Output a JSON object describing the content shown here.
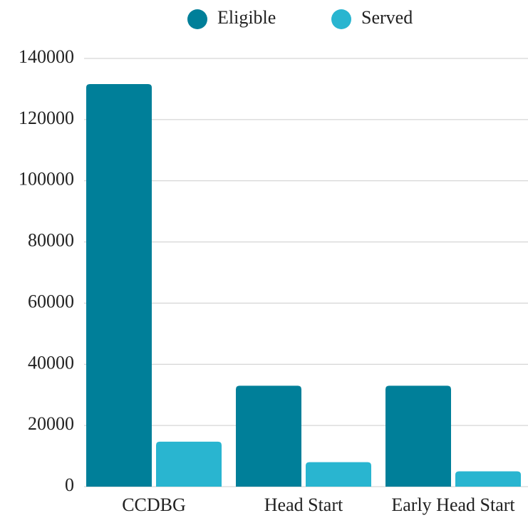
{
  "chart_data": {
    "type": "bar",
    "categories": [
      "CCDBG",
      "Head Start",
      "Early Head Start"
    ],
    "series": [
      {
        "name": "Eligible",
        "color": "#007f99",
        "values": [
          131600,
          33000,
          33000
        ]
      },
      {
        "name": "Served",
        "color": "#29b5d0",
        "values": [
          14700,
          8000,
          5000
        ]
      }
    ],
    "ylim": [
      0,
      140000
    ],
    "yticks": [
      0,
      20000,
      40000,
      60000,
      80000,
      100000,
      120000,
      140000
    ],
    "grid": true,
    "legend": "top"
  }
}
